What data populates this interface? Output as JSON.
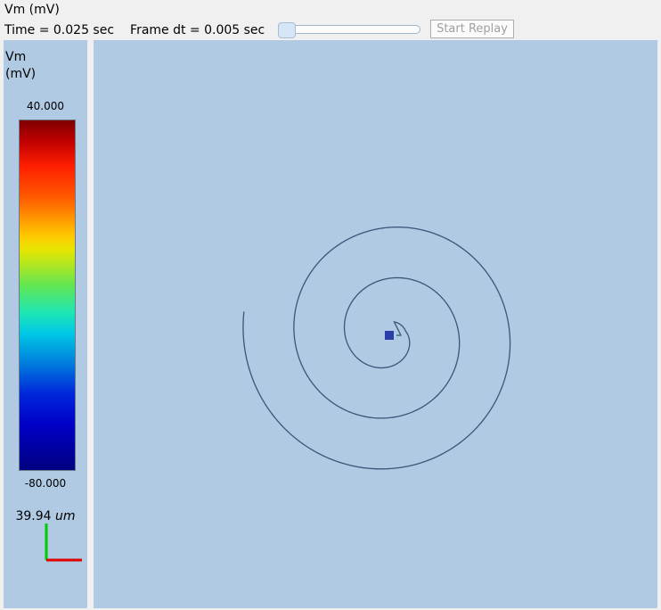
{
  "window": {
    "title": "Vm (mV)"
  },
  "controls": {
    "time_text": "Time = 0.025 sec",
    "frame_dt_text": "Frame dt = 0.005 sec",
    "slider_value": 0,
    "replay_label": "Start Replay"
  },
  "legend": {
    "label_line1": "Vm",
    "label_line2": "(mV)",
    "max": "40.000",
    "min": "-80.000",
    "scale_value": "39.94",
    "scale_unit": "um",
    "colormap": "jet"
  },
  "view": {
    "background": "#b0cae3",
    "curve_color": "#3a5578",
    "soma_color": "#2c3ea8"
  }
}
